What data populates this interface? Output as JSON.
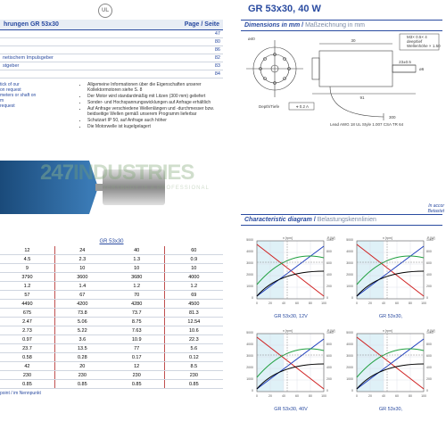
{
  "ul_mark": "UL",
  "title": "GR 53x30, 40 W",
  "ref_header": "hrungen GR 53x30",
  "ref_page_label": "Page / Seite",
  "ref_rows": [
    {
      "label": "",
      "page": "47"
    },
    {
      "label": "",
      "page": "80"
    },
    {
      "label": "",
      "page": "86"
    },
    {
      "label": "netischem Impulsgeber",
      "page": "82"
    },
    {
      "label": "stgeber",
      "page": "83"
    },
    {
      "label": "",
      "page": "84"
    }
  ],
  "info_left": [
    "tick of our",
    "",
    "on request",
    "meters or shaft on",
    "m",
    "request"
  ],
  "info_bullets": [
    "Allgemeine Informationen über die Eigenschaften unserer Kollektormotoren siehe S. 8",
    "Der Motor wird standardmäßig mit Litzen (300 mm) geliefert",
    "Sonder- und Hochspannungswicklungen auf Anfrage erhältlich",
    "Auf Anfrage verschiedene Wellenlängen und -durchmesser bzw. beidseitige Wellen gemäß unserem Programm lieferbar",
    "Schutzart IP 50, auf Anfrage auch höher",
    "Die Motorwelle ist kugelgelagert"
  ],
  "watermark_a": "247",
  "watermark_b": "INDUSTRIES",
  "watermark_sub": "EVERYBODY IS A PROFESSIONAL",
  "data_caption": "GR 53x30",
  "data_rows": [
    [
      "12",
      "24",
      "40",
      "60"
    ],
    [
      "4.5",
      "2.3",
      "1.3",
      "0.9"
    ],
    [
      "9",
      "10",
      "10",
      "10"
    ],
    [
      "3790",
      "3600",
      "3680",
      "4000"
    ],
    [
      "1.2",
      "1.4",
      "1.2",
      "1.2"
    ],
    [
      "57",
      "67",
      "70",
      "69"
    ],
    [
      "4490",
      "4200",
      "4280",
      "4500"
    ],
    [
      "675",
      "73.8",
      "73.7",
      "81.3"
    ],
    [
      "2.47",
      "5.06",
      "8.75",
      "12.54"
    ],
    [
      "2.73",
      "5.22",
      "7.63",
      "10.6"
    ],
    [
      "0.97",
      "3.6",
      "10.9",
      "22.3"
    ],
    [
      "23.7",
      "13.5",
      "77",
      "5.6"
    ],
    [
      "0.58",
      "0.28",
      "0.17",
      "0.12"
    ],
    [
      "42",
      "20",
      "12",
      "8.5"
    ],
    [
      "230",
      "230",
      "230",
      "230"
    ],
    [
      "0.85",
      "0.85",
      "0.85",
      "0.85"
    ]
  ],
  "footnote": "point / im Nennpunkt",
  "dim_header_en": "Dimensions in mm",
  "dim_header_de": "Maßzeichnung in mm",
  "dim_labels": {
    "diameter": "ø53",
    "length": "91",
    "body": "30",
    "shaft_d": "ø6",
    "shaft_l": "23±0.5",
    "bolt_circle": "ø40",
    "lead": "Lead AWG 18 UL Style 1.007 CSA TR 64",
    "leadlen": "300",
    "tag1": "M3× 0.5× 4",
    "tag2": "deep/tief",
    "tag3": "Wellenhöhe × 1.50",
    "depth_note": "Depth/Tiefe",
    "tol": "⌖ 0.2 A"
  },
  "accnote1": "In accor",
  "accnote2": "Betastet",
  "char_header_en": "Characteristic diagram",
  "char_header_de": "Belastungskennlinien",
  "charts": [
    {
      "title": "GR 53x30, 12V",
      "series_colors": [
        "#d02020",
        "#2040c0",
        "#20a040",
        "#000000"
      ],
      "xlim": [
        0,
        100
      ],
      "ylim_l": [
        0,
        1000
      ],
      "ylim_r": [
        0,
        5000
      ]
    },
    {
      "title": "GR 53x30,",
      "series_colors": [
        "#d02020",
        "#2040c0",
        "#20a040",
        "#000000"
      ],
      "xlim": [
        0,
        100
      ],
      "ylim_l": [
        0,
        1000
      ],
      "ylim_r": [
        0,
        5000
      ]
    },
    {
      "title": "GR 53x30, 40V",
      "series_colors": [
        "#d02020",
        "#2040c0",
        "#20a040",
        "#000000"
      ],
      "xlim": [
        0,
        100
      ],
      "ylim_l": [
        0,
        1000
      ],
      "ylim_r": [
        0,
        5000
      ]
    },
    {
      "title": "GR 53x30,",
      "series_colors": [
        "#d02020",
        "#2040c0",
        "#20a040",
        "#000000"
      ],
      "xlim": [
        0,
        100
      ],
      "ylim_l": [
        0,
        1000
      ],
      "ylim_r": [
        0,
        5000
      ]
    }
  ],
  "chart_style": {
    "grid_color": "#d8dce4",
    "axis_color": "#606060",
    "bg_band": "#bfe3f0",
    "dash_color": "#888888"
  }
}
